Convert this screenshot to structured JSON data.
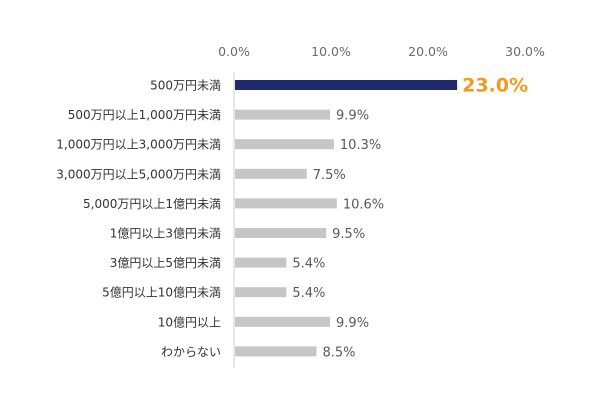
{
  "colors": {
    "highlight_bar": "#1f2a6b",
    "bar": "#c6c6c6",
    "highlight_label": "#f39a1e",
    "label": "#595959",
    "axis": "#cfcfcf",
    "category_text": "#333333",
    "tick_text": "#6b6b6b"
  },
  "chart_data": {
    "type": "bar",
    "orientation": "horizontal",
    "title": "",
    "xlabel": "",
    "ylabel": "",
    "xlim": [
      0,
      30
    ],
    "x_ticks": [
      0,
      10,
      20,
      30
    ],
    "x_tick_labels": [
      "0.0%",
      "10.0%",
      "20.0%",
      "30.0%"
    ],
    "x_axis_position": "top",
    "grid": false,
    "categories": [
      "500万円未満",
      "500万円以上1,000万円未満",
      "1,000万円以上3,000万円未満",
      "3,000万円以上5,000万円未満",
      "5,000万円以上1億円未満",
      "1億円以上3億円未満",
      "3億円以上5億円未満",
      "5億円以上10億円未満",
      "10億円以上",
      "わからない"
    ],
    "values": [
      23.0,
      9.9,
      10.3,
      7.5,
      10.6,
      9.5,
      5.4,
      5.4,
      9.9,
      8.5
    ],
    "value_labels": [
      "23.0%",
      "9.9%",
      "10.3%",
      "7.5%",
      "10.6%",
      "9.5%",
      "5.4%",
      "5.4%",
      "9.9%",
      "8.5%"
    ],
    "highlight_index": 0
  }
}
